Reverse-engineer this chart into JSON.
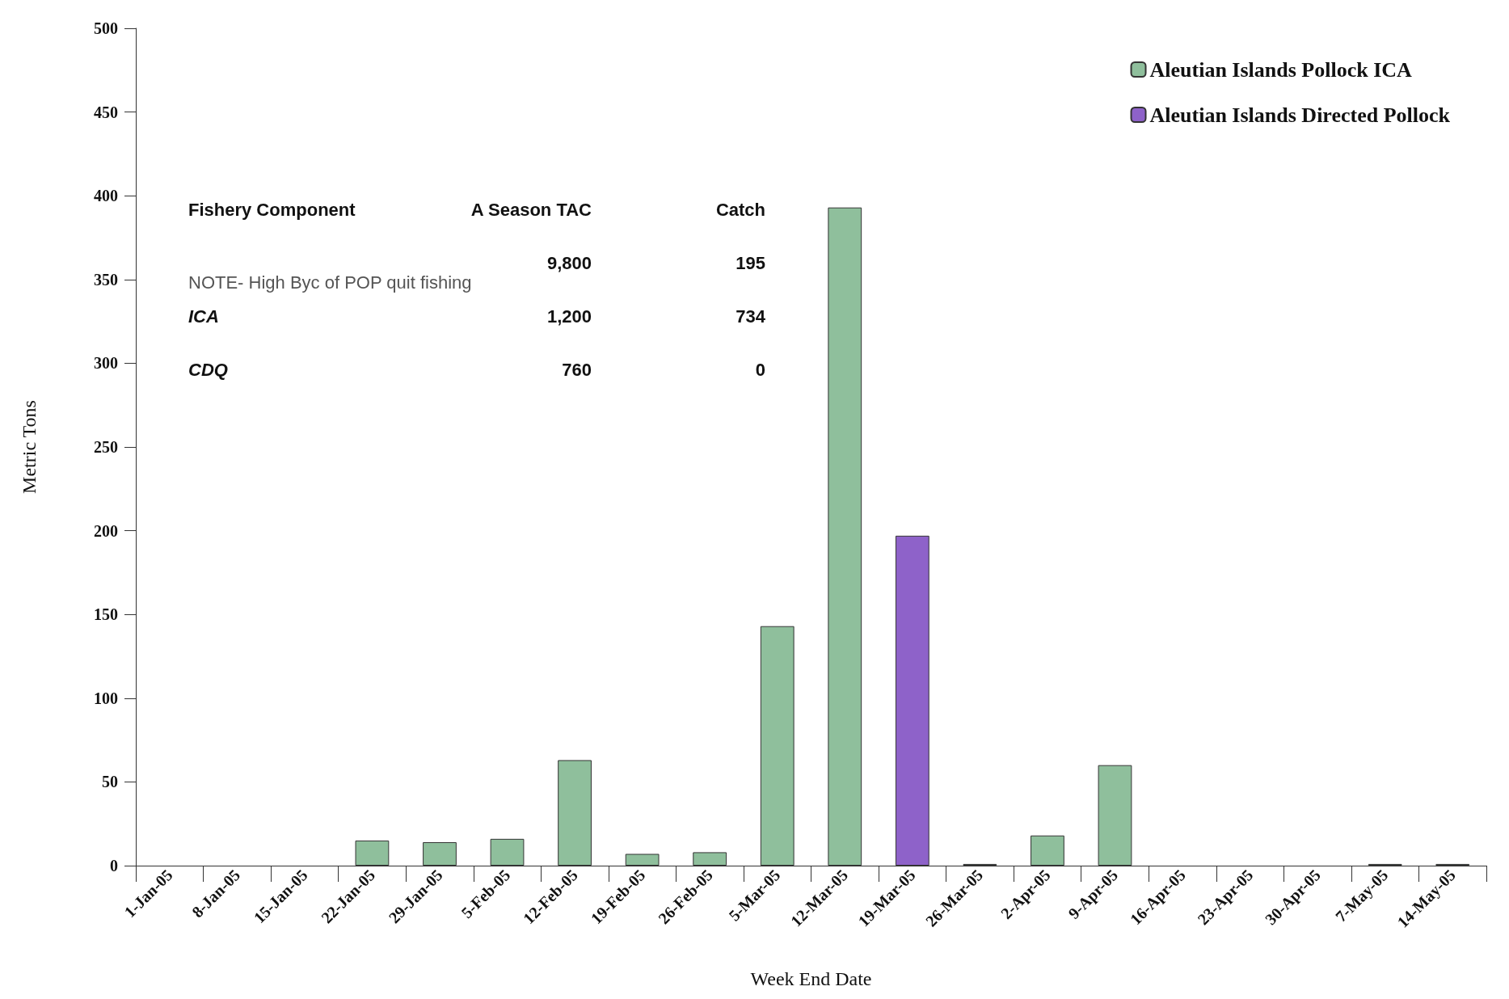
{
  "chart_data": {
    "type": "bar",
    "xlabel": "Week End Date",
    "ylabel": "Metric Tons",
    "categories": [
      "1-Jan-05",
      "8-Jan-05",
      "15-Jan-05",
      "22-Jan-05",
      "29-Jan-05",
      "5-Feb-05",
      "12-Feb-05",
      "19-Feb-05",
      "26-Feb-05",
      "5-Mar-05",
      "12-Mar-05",
      "19-Mar-05",
      "26-Mar-05",
      "2-Apr-05",
      "9-Apr-05",
      "16-Apr-05",
      "23-Apr-05",
      "30-Apr-05",
      "7-May-05",
      "14-May-05"
    ],
    "series": [
      {
        "name": "Aleutian Islands Pollock ICA",
        "color": "#8fbf9c",
        "values": [
          null,
          null,
          null,
          15,
          14,
          16,
          63,
          7,
          8,
          143,
          393,
          null,
          1,
          18,
          60,
          null,
          null,
          null,
          1,
          1
        ]
      },
      {
        "name": "Aleutian Islands Directed Pollock",
        "color": "#8e62c9",
        "values": [
          null,
          null,
          null,
          null,
          null,
          null,
          null,
          null,
          null,
          null,
          null,
          197,
          null,
          null,
          null,
          null,
          null,
          null,
          null,
          null
        ]
      }
    ],
    "stacked": true,
    "ylim": [
      0,
      500
    ],
    "yticks": [
      0,
      50,
      100,
      150,
      200,
      250,
      300,
      350,
      400,
      450,
      500
    ],
    "grid": false,
    "legend": "top right",
    "annotations": [
      "Fishery Component",
      "A Season TAC",
      "Catch",
      "9,800",
      "195",
      "ICA",
      "1,200",
      "734",
      "CDQ",
      "760",
      "0",
      "NOTE- High Byc of POP quit fishing"
    ]
  }
}
